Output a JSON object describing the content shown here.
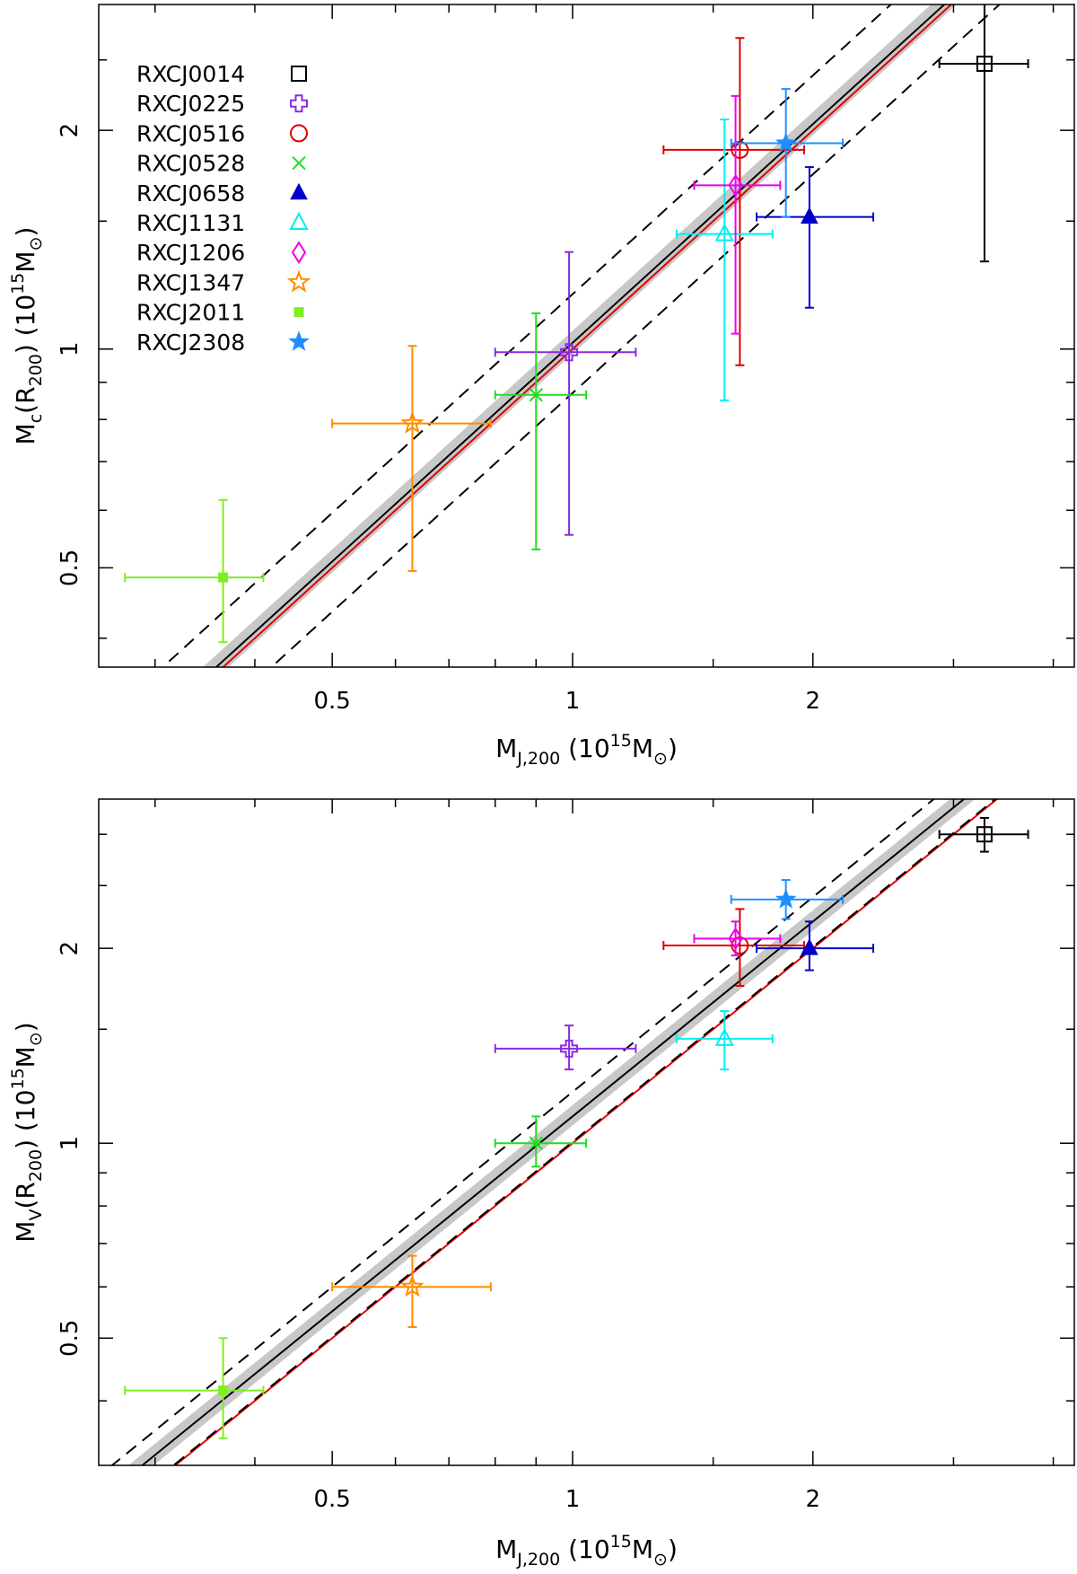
{
  "chart_data": [
    {
      "type": "scatter",
      "panel": "top",
      "xscale": "log",
      "yscale": "log",
      "xlim": [
        0.255,
        4.25
      ],
      "ylim": [
        0.365,
        2.98
      ],
      "xticks": [
        0.5,
        1,
        2
      ],
      "yticks": [
        0.5,
        1,
        2
      ],
      "xlabel": {
        "main": "M",
        "sub": "J,200",
        "rest": "  (10",
        "sup": "15",
        "tail": "M",
        "sun": "⊙",
        "close": ")"
      },
      "ylabel": {
        "main": "M",
        "sub": "c",
        "mid": "(R",
        "sub2": "200",
        "rest": ")  (10",
        "sup": "15",
        "tail": "M",
        "sun": "⊙",
        "close": ")"
      },
      "legend_position": "top-left",
      "fit_lines": [
        {
          "name": "best fit",
          "slope": 1.0,
          "norm": 1.02,
          "color": "#000000",
          "style": "solid"
        },
        {
          "name": "one-to-one",
          "slope": 1.0,
          "norm": 1.0,
          "color": "#e00000",
          "style": "solid"
        },
        {
          "name": "upper scatter",
          "slope": 1.0,
          "norm": 1.19,
          "color": "#000000",
          "style": "dashed"
        },
        {
          "name": "lower scatter",
          "slope": 1.0,
          "norm": 0.87,
          "color": "#000000",
          "style": "dashed"
        }
      ],
      "band": {
        "norm_low": 0.985,
        "norm_high": 1.06,
        "color": "#c8c8c8"
      },
      "series": [
        {
          "name": "RXCJ0014",
          "marker": "open-square",
          "color": "#000000",
          "x": 3.28,
          "y": 2.47,
          "xerr": [
            2.88,
            3.72
          ],
          "yerr": [
            1.32,
            3.7
          ]
        },
        {
          "name": "RXCJ0225",
          "marker": "open-cross",
          "color": "#8a2be2",
          "x": 0.99,
          "y": 0.99,
          "xerr": [
            0.8,
            1.2
          ],
          "yerr": [
            0.555,
            1.36
          ]
        },
        {
          "name": "RXCJ0516",
          "marker": "open-circle",
          "color": "#e00000",
          "x": 1.62,
          "y": 1.88,
          "xerr": [
            1.3,
            1.95
          ],
          "yerr": [
            0.95,
            2.68
          ]
        },
        {
          "name": "RXCJ0528",
          "marker": "cross-x",
          "color": "#22dd22",
          "x": 0.9,
          "y": 0.865,
          "xerr": [
            0.8,
            1.04
          ],
          "yerr": [
            0.53,
            1.12
          ]
        },
        {
          "name": "RXCJ0658",
          "marker": "filled-triangle",
          "color": "#0000cc",
          "x": 1.98,
          "y": 1.52,
          "xerr": [
            1.7,
            2.38
          ],
          "yerr": [
            1.14,
            1.78
          ]
        },
        {
          "name": "RXCJ1131",
          "marker": "open-triangle",
          "color": "#00eeee",
          "x": 1.55,
          "y": 1.44,
          "xerr": [
            1.35,
            1.78
          ],
          "yerr": [
            0.85,
            2.07
          ]
        },
        {
          "name": "RXCJ1206",
          "marker": "open-diamond",
          "color": "#ee00ee",
          "x": 1.6,
          "y": 1.68,
          "xerr": [
            1.42,
            1.82
          ],
          "yerr": [
            1.05,
            2.23
          ]
        },
        {
          "name": "RXCJ1347",
          "marker": "open-star",
          "color": "#ff8c00",
          "x": 0.63,
          "y": 0.79,
          "xerr": [
            0.5,
            0.79
          ],
          "yerr": [
            0.495,
            1.01
          ]
        },
        {
          "name": "RXCJ2011",
          "marker": "filled-square",
          "color": "#7fee22",
          "x": 0.365,
          "y": 0.485,
          "xerr": [
            0.275,
            0.41
          ],
          "yerr": [
            0.395,
            0.62
          ]
        },
        {
          "name": "RXCJ2308",
          "marker": "filled-star",
          "color": "#1e8fff",
          "x": 1.85,
          "y": 1.92,
          "xerr": [
            1.58,
            2.18
          ],
          "yerr": [
            1.52,
            2.28
          ]
        }
      ]
    },
    {
      "type": "scatter",
      "panel": "bottom",
      "xscale": "log",
      "yscale": "log",
      "xlim": [
        0.255,
        4.25
      ],
      "ylim": [
        0.318,
        3.4
      ],
      "xticks": [
        0.5,
        1,
        2
      ],
      "yticks": [
        0.5,
        1,
        2
      ],
      "xlabel": {
        "main": "M",
        "sub": "J,200",
        "rest": "  (10",
        "sup": "15",
        "tail": "M",
        "sun": "⊙",
        "close": ")"
      },
      "ylabel": {
        "main": "M",
        "sub": "V",
        "mid": "(R",
        "sub2": "200",
        "rest": ")  (10",
        "sup": "15",
        "tail": "M",
        "sun": "⊙",
        "close": ")"
      },
      "fit_lines": [
        {
          "name": "best fit",
          "slope": 1.0,
          "norm": 1.1,
          "color": "#000000",
          "style": "solid"
        },
        {
          "name": "one-to-one",
          "slope": 1.0,
          "norm": 1.0,
          "color": "#e00000",
          "style": "solid"
        },
        {
          "name": "upper scatter",
          "slope": 1.0,
          "norm": 1.2,
          "color": "#000000",
          "style": "dashed"
        },
        {
          "name": "lower scatter",
          "slope": 1.0,
          "norm": 1.005,
          "color": "#000000",
          "style": "dashed"
        }
      ],
      "band": {
        "norm_low": 1.065,
        "norm_high": 1.145,
        "color": "#c8c8c8"
      },
      "series": [
        {
          "name": "RXCJ0014",
          "marker": "open-square",
          "color": "#000000",
          "x": 3.28,
          "y": 3.0,
          "xerr": [
            2.88,
            3.72
          ],
          "yerr": [
            2.82,
            3.18
          ]
        },
        {
          "name": "RXCJ0225",
          "marker": "open-cross",
          "color": "#8a2be2",
          "x": 0.99,
          "y": 1.4,
          "xerr": [
            0.8,
            1.2
          ],
          "yerr": [
            1.3,
            1.52
          ]
        },
        {
          "name": "RXCJ0516",
          "marker": "open-circle",
          "color": "#e00000",
          "x": 1.62,
          "y": 2.02,
          "xerr": [
            1.3,
            1.95
          ],
          "yerr": [
            1.75,
            2.3
          ]
        },
        {
          "name": "RXCJ0528",
          "marker": "cross-x",
          "color": "#22dd22",
          "x": 0.9,
          "y": 1.0,
          "xerr": [
            0.8,
            1.04
          ],
          "yerr": [
            0.92,
            1.1
          ]
        },
        {
          "name": "RXCJ0658",
          "marker": "filled-triangle",
          "color": "#0000cc",
          "x": 1.98,
          "y": 2.0,
          "xerr": [
            1.7,
            2.38
          ],
          "yerr": [
            1.85,
            2.2
          ]
        },
        {
          "name": "RXCJ1131",
          "marker": "open-triangle",
          "color": "#00eeee",
          "x": 1.55,
          "y": 1.45,
          "xerr": [
            1.35,
            1.78
          ],
          "yerr": [
            1.3,
            1.6
          ]
        },
        {
          "name": "RXCJ1206",
          "marker": "open-diamond",
          "color": "#ee00ee",
          "x": 1.6,
          "y": 2.07,
          "xerr": [
            1.42,
            1.82
          ],
          "yerr": [
            1.95,
            2.2
          ]
        },
        {
          "name": "RXCJ1347",
          "marker": "open-star",
          "color": "#ff8c00",
          "x": 0.63,
          "y": 0.6,
          "xerr": [
            0.5,
            0.79
          ],
          "yerr": [
            0.52,
            0.67
          ]
        },
        {
          "name": "RXCJ2011",
          "marker": "filled-square",
          "color": "#7fee22",
          "x": 0.365,
          "y": 0.415,
          "xerr": [
            0.275,
            0.41
          ],
          "yerr": [
            0.35,
            0.5
          ]
        },
        {
          "name": "RXCJ2308",
          "marker": "filled-star",
          "color": "#1e8fff",
          "x": 1.85,
          "y": 2.38,
          "xerr": [
            1.58,
            2.18
          ],
          "yerr": [
            2.22,
            2.55
          ]
        }
      ]
    }
  ]
}
